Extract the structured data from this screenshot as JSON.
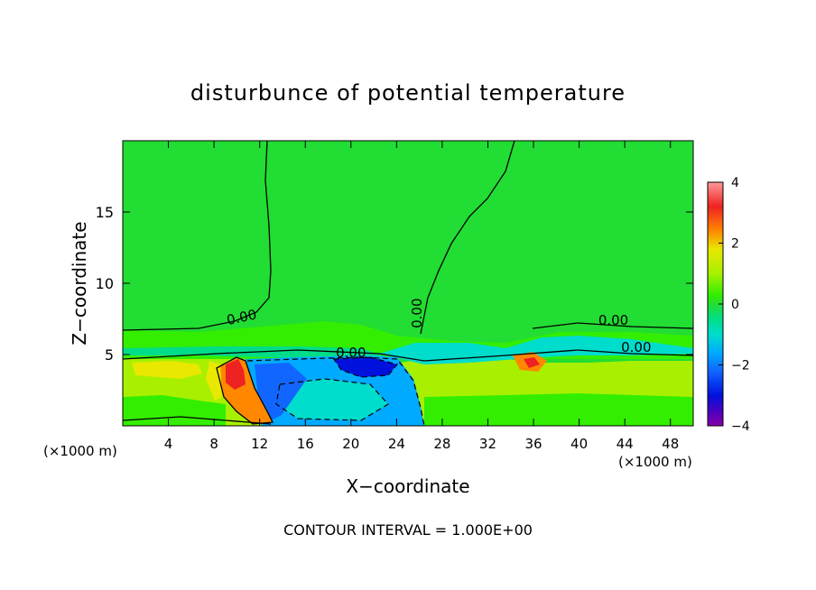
{
  "chart_data": {
    "type": "heatmap",
    "title": "disturbunce of potential temperature",
    "xlabel": "X−coordinate",
    "ylabel": "Z−coordinate",
    "x_unit_left": "(×1000 m)",
    "x_unit_right": "(×1000 m)",
    "footer": "CONTOUR INTERVAL = 1.000E+00",
    "xlim": [
      0,
      50
    ],
    "ylim": [
      0,
      20
    ],
    "x_ticks": [
      4,
      8,
      12,
      16,
      20,
      24,
      28,
      32,
      36,
      40,
      44,
      48
    ],
    "y_ticks": [
      5,
      10,
      15
    ],
    "colorbar": {
      "range": [
        -4,
        4
      ],
      "tick_values": [
        4,
        2,
        0,
        -2,
        -4
      ],
      "tick_labels": [
        "4",
        "2",
        "0",
        "−2",
        "−4"
      ],
      "colors": [
        {
          "v": 4,
          "c": "#ff9999"
        },
        {
          "v": 3.2,
          "c": "#ee2222"
        },
        {
          "v": 2.4,
          "c": "#ff8800"
        },
        {
          "v": 1.8,
          "c": "#e8e800"
        },
        {
          "v": 1.0,
          "c": "#a8f000"
        },
        {
          "v": 0.3,
          "c": "#33ee00"
        },
        {
          "v": 0,
          "c": "#22dd33"
        },
        {
          "v": -0.5,
          "c": "#00dd88"
        },
        {
          "v": -1.0,
          "c": "#00ddcc"
        },
        {
          "v": -1.6,
          "c": "#00aaff"
        },
        {
          "v": -2.2,
          "c": "#1166ff"
        },
        {
          "v": -3.0,
          "c": "#0011dd"
        },
        {
          "v": -3.6,
          "c": "#5500bb"
        },
        {
          "v": -4,
          "c": "#8800aa"
        }
      ]
    },
    "contour_labels": [
      {
        "text": "0.00",
        "x": 10.5,
        "z": 7.3,
        "angle": -12
      },
      {
        "text": "0.00",
        "x": 26.2,
        "z": 7.9,
        "angle": -90
      },
      {
        "text": "0.00",
        "x": 43.0,
        "z": 7.1,
        "angle": 0
      },
      {
        "text": "0.00",
        "x": 45.0,
        "z": 5.2,
        "angle": 0
      },
      {
        "text": "0.00",
        "x": 20.0,
        "z": 4.8,
        "angle": 0
      }
    ],
    "regions": [
      {
        "name": "background",
        "value": 0.2
      },
      {
        "name": "lower-layer",
        "value": 0.8
      },
      {
        "name": "positive-maximum-near-x10",
        "value": 3.2
      },
      {
        "name": "negative-cold-pool-x12-26",
        "value": -1.5
      },
      {
        "name": "negative-minimum-near-x22",
        "value": -3.0
      },
      {
        "name": "positive-blob-near-x35",
        "value": 2.2
      },
      {
        "name": "weak-negative-x27-42",
        "value": -0.6
      }
    ]
  }
}
